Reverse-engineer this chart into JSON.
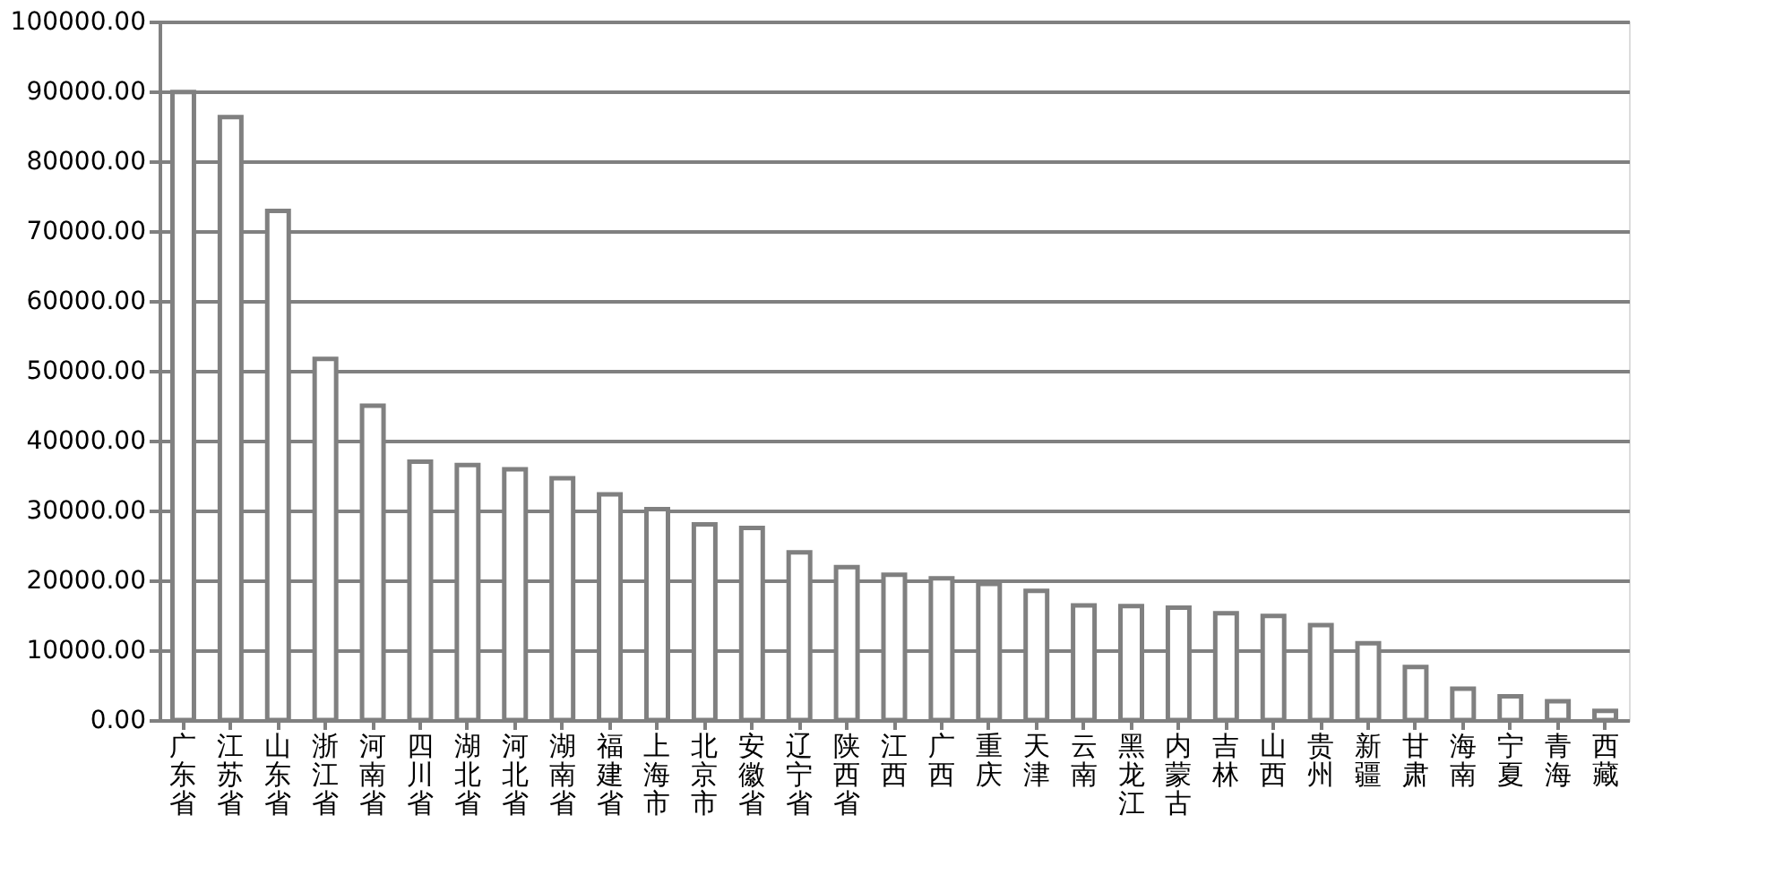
{
  "chart_data": {
    "type": "bar",
    "categories": [
      "广东省",
      "江苏省",
      "山东省",
      "浙江省",
      "河南省",
      "四川省",
      "湖北省",
      "河北省",
      "湖南省",
      "福建省",
      "上海市",
      "北京市",
      "安徽省",
      "辽宁省",
      "陕西省",
      "江西",
      "广西",
      "重庆",
      "天津",
      "云南",
      "黑龙江",
      "内蒙古",
      "吉林",
      "山西",
      "贵州",
      "新疆",
      "甘肃",
      "海南",
      "宁夏",
      "青海",
      "西藏"
    ],
    "values": [
      89900,
      86300,
      72900,
      51700,
      45000,
      37000,
      36500,
      35900,
      34600,
      32300,
      30200,
      28000,
      27500,
      24000,
      21900,
      20800,
      20300,
      19500,
      18500,
      16400,
      16300,
      16100,
      15300,
      14900,
      13600,
      11000,
      7600,
      4500,
      3400,
      2700,
      1300
    ],
    "color": "#ffffff",
    "ylim": [
      0,
      100000
    ],
    "yticks": [
      {
        "value": 0,
        "label": "0.00"
      },
      {
        "value": 10000,
        "label": "10000.00"
      },
      {
        "value": 20000,
        "label": "20000.00"
      },
      {
        "value": 30000,
        "label": "30000.00"
      },
      {
        "value": 40000,
        "label": "40000.00"
      },
      {
        "value": 50000,
        "label": "50000.00"
      },
      {
        "value": 60000,
        "label": "60000.00"
      },
      {
        "value": 70000,
        "label": "70000.00"
      },
      {
        "value": 80000,
        "label": "80000.00"
      },
      {
        "value": 90000,
        "label": "90000.00"
      },
      {
        "value": 100000,
        "label": "100000.00"
      }
    ],
    "grid": "y"
  }
}
